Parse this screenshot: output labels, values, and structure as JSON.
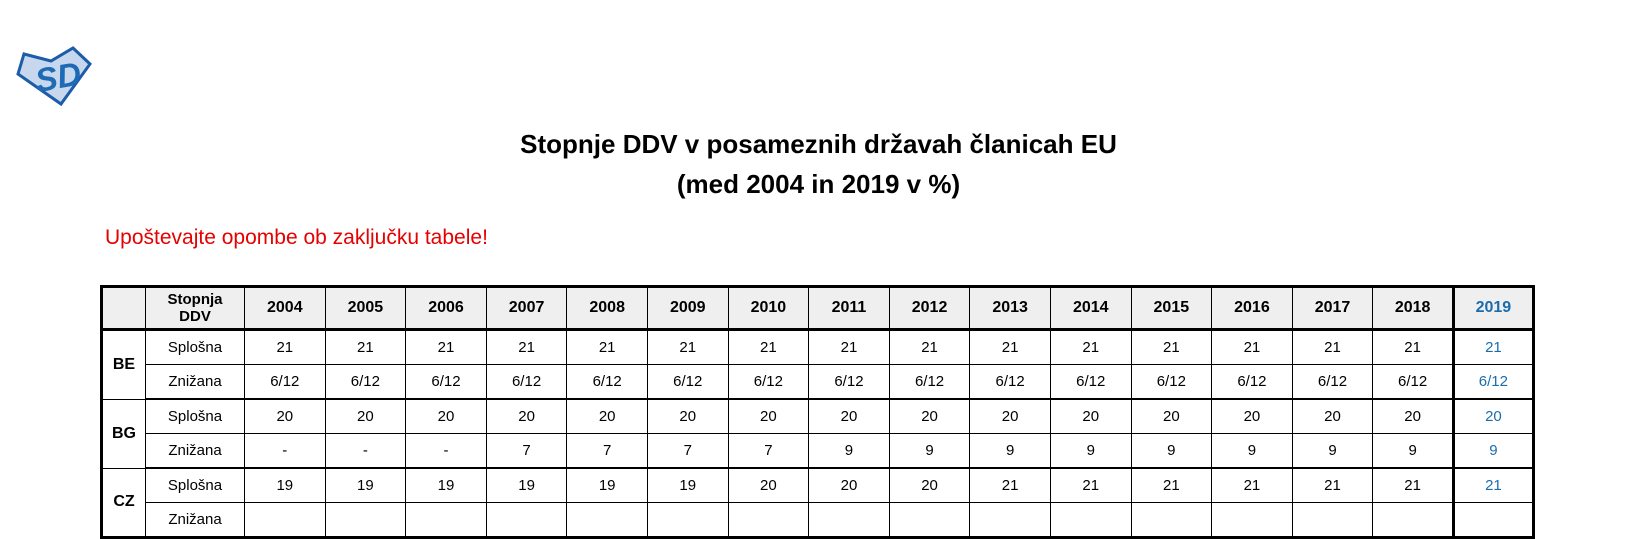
{
  "logo": {
    "text": "SD"
  },
  "title": {
    "line1": "Stopnje DDV v posameznih državah članicah EU",
    "line2": "(med 2004 in 2019 v %)"
  },
  "note": "Upoštevajte opombe ob zaključku tabele!",
  "table": {
    "corner_label": "",
    "rate_header": "Stopnja\nDDV",
    "years": [
      "2004",
      "2005",
      "2006",
      "2007",
      "2008",
      "2009",
      "2010",
      "2011",
      "2012",
      "2013",
      "2014",
      "2015",
      "2016",
      "2017",
      "2018",
      "2019"
    ],
    "highlight_year": "2019",
    "row_labels": {
      "standard": "Splošna",
      "reduced": "Znižana"
    },
    "countries": [
      {
        "code": "BE",
        "splosna": [
          "21",
          "21",
          "21",
          "21",
          "21",
          "21",
          "21",
          "21",
          "21",
          "21",
          "21",
          "21",
          "21",
          "21",
          "21",
          "21"
        ],
        "znizana": [
          "6/12",
          "6/12",
          "6/12",
          "6/12",
          "6/12",
          "6/12",
          "6/12",
          "6/12",
          "6/12",
          "6/12",
          "6/12",
          "6/12",
          "6/12",
          "6/12",
          "6/12",
          "6/12"
        ]
      },
      {
        "code": "BG",
        "splosna": [
          "20",
          "20",
          "20",
          "20",
          "20",
          "20",
          "20",
          "20",
          "20",
          "20",
          "20",
          "20",
          "20",
          "20",
          "20",
          "20"
        ],
        "znizana": [
          "-",
          "-",
          "-",
          "7",
          "7",
          "7",
          "7",
          "9",
          "9",
          "9",
          "9",
          "9",
          "9",
          "9",
          "9",
          "9"
        ]
      },
      {
        "code": "CZ",
        "splosna": [
          "19",
          "19",
          "19",
          "19",
          "19",
          "19",
          "20",
          "20",
          "20",
          "21",
          "21",
          "21",
          "21",
          "21",
          "21",
          "21"
        ],
        "znizana": [
          "",
          "",
          "",
          "",
          "",
          "",
          "",
          "",
          "",
          "",
          "",
          "",
          "",
          "",
          "",
          ""
        ]
      }
    ]
  },
  "colors": {
    "highlight_blue": "#1b6cab",
    "note_red": "#e60000",
    "header_bg": "#efefef",
    "border_black": "#000000",
    "logo_outline": "#1c5ca8",
    "logo_fill": "#c7d7ee",
    "logo_letters": "#1e6ab5"
  }
}
